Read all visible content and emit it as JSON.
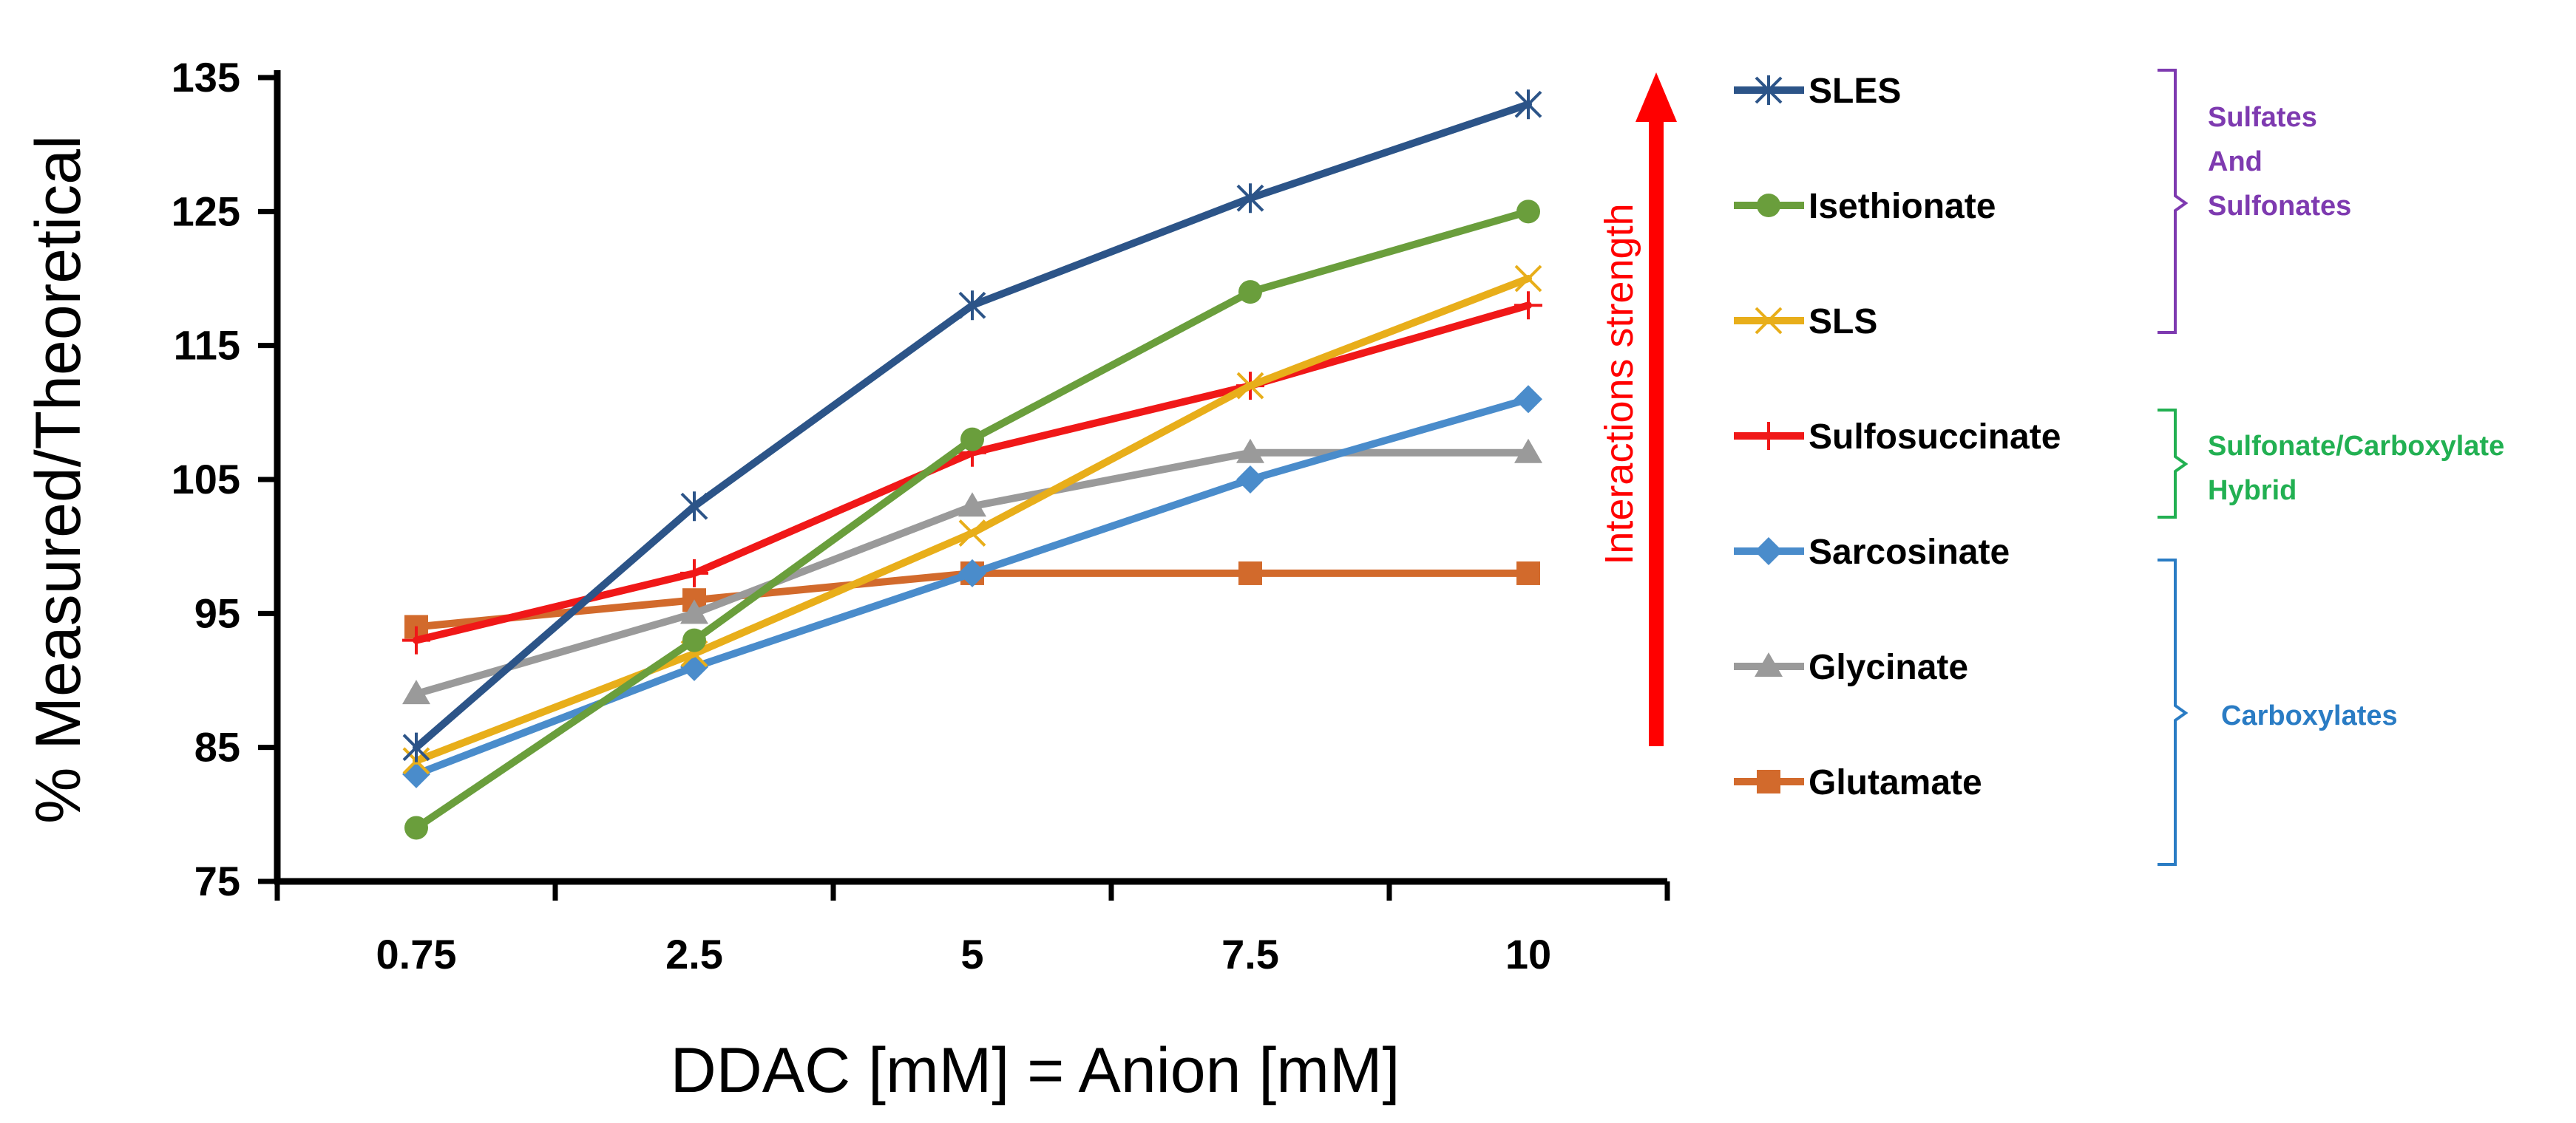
{
  "chart_data": {
    "type": "line",
    "title": "",
    "xlabel": "DDAC [mM] = Anion [mM]",
    "ylabel": "% Measured/Theoretical",
    "categories": [
      "0.75",
      "2.5",
      "5",
      "7.5",
      "10"
    ],
    "ylim": [
      75,
      135
    ],
    "yticks": [
      75,
      85,
      95,
      105,
      115,
      125,
      135
    ],
    "grid": false,
    "legend_position": "right",
    "series": [
      {
        "name": "SLES",
        "color": "#2C5488",
        "marker": "asterisk",
        "values": [
          85,
          103,
          118,
          126,
          133
        ]
      },
      {
        "name": "Isethionate",
        "color": "#6A9E3C",
        "marker": "circle",
        "values": [
          79,
          93,
          108,
          119,
          125
        ]
      },
      {
        "name": "SLS",
        "color": "#E8AE1A",
        "marker": "x",
        "values": [
          84,
          92,
          101,
          112,
          120
        ]
      },
      {
        "name": "Sulfosuccinate",
        "color": "#F01818",
        "marker": "plus",
        "values": [
          93,
          98,
          107,
          112,
          118
        ]
      },
      {
        "name": "Sarcosinate",
        "color": "#4A8CCB",
        "marker": "diamond",
        "values": [
          83,
          91,
          98,
          105,
          111
        ]
      },
      {
        "name": "Glycinate",
        "color": "#9A9A9A",
        "marker": "triangle",
        "values": [
          89,
          95,
          103,
          107,
          107
        ]
      },
      {
        "name": "Glutamate",
        "color": "#D26A2C",
        "marker": "square",
        "values": [
          94,
          96,
          98,
          98,
          98
        ]
      }
    ],
    "annotations": {
      "arrow_label": "Interactions strength",
      "arrow_color": "#FF0000"
    },
    "groups": [
      {
        "lines": [
          "Sulfates",
          "And",
          "Sulfonates"
        ],
        "color": "#7E3AB0"
      },
      {
        "lines": [
          "Sulfonate/Carboxylate",
          "Hybrid"
        ],
        "color": "#22B052"
      },
      {
        "lines": [
          "Carboxylates"
        ],
        "color": "#2A7CC4"
      }
    ]
  }
}
